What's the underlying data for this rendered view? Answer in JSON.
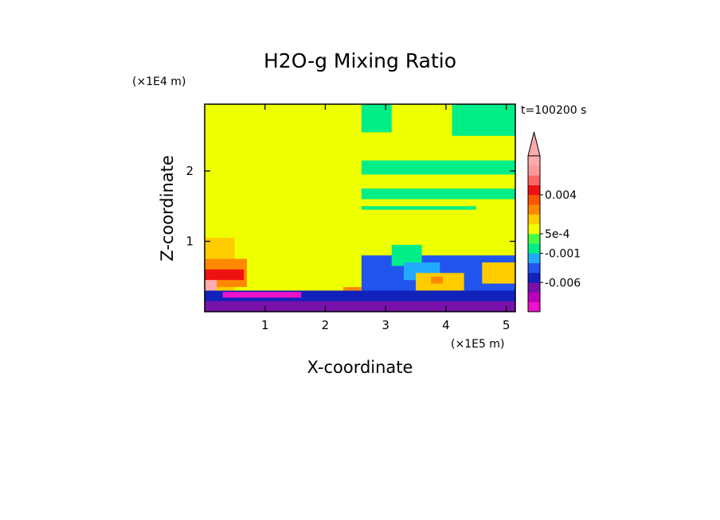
{
  "chart_data": {
    "type": "heatmap",
    "title": "H2O-g Mixing Ratio",
    "xlabel": "X-coordinate",
    "ylabel": "Z-coordinate",
    "x_unit": "(×1E5 m)",
    "y_unit": "(×1E4 m)",
    "time_label": "t=100200 s",
    "xlim": [
      0,
      5.15
    ],
    "ylim": [
      0,
      2.95
    ],
    "x_ticks": [
      1,
      2,
      3,
      4,
      5
    ],
    "y_ticks": [
      1,
      2
    ],
    "colorbar": {
      "colors": [
        "#ee11cc",
        "#bb00bb",
        "#7711aa",
        "#1122bb",
        "#2255ee",
        "#22aaff",
        "#00ee88",
        "#44ff44",
        "#eeff00",
        "#ffcc00",
        "#ff8800",
        "#ff5500",
        "#ee1111",
        "#ff6666",
        "#ff9999",
        "#ffaaaa"
      ],
      "tick_labels": [
        "0.004",
        "5e-4",
        "-0.001",
        "-0.006"
      ],
      "tick_values": [
        0.004,
        0.0005,
        -0.001,
        -0.006
      ],
      "extend": "max"
    },
    "regions": [
      {
        "fill": "#eeff00",
        "x": [
          0,
          5.15
        ],
        "y": [
          0,
          2.95
        ]
      },
      {
        "fill": "#00ee88",
        "x": [
          2.6,
          3.1
        ],
        "y": [
          2.55,
          2.95
        ]
      },
      {
        "fill": "#00ee88",
        "x": [
          4.1,
          5.15
        ],
        "y": [
          2.5,
          2.95
        ]
      },
      {
        "fill": "#00ee88",
        "x": [
          2.6,
          5.15
        ],
        "y": [
          1.95,
          2.15
        ]
      },
      {
        "fill": "#00ee88",
        "x": [
          2.6,
          5.15
        ],
        "y": [
          1.6,
          1.75
        ]
      },
      {
        "fill": "#00ee88",
        "x": [
          2.6,
          4.5
        ],
        "y": [
          1.45,
          1.5
        ]
      },
      {
        "fill": "#2255ee",
        "x": [
          2.6,
          5.15
        ],
        "y": [
          0.1,
          0.8
        ]
      },
      {
        "fill": "#00ee88",
        "x": [
          3.1,
          3.6
        ],
        "y": [
          0.65,
          0.95
        ]
      },
      {
        "fill": "#22aaff",
        "x": [
          3.3,
          3.9
        ],
        "y": [
          0.45,
          0.7
        ]
      },
      {
        "fill": "#ffcc00",
        "x": [
          3.5,
          4.3
        ],
        "y": [
          0.3,
          0.55
        ]
      },
      {
        "fill": "#ff8800",
        "x": [
          3.75,
          3.95
        ],
        "y": [
          0.4,
          0.5
        ]
      },
      {
        "fill": "#ffcc00",
        "x": [
          4.6,
          5.15
        ],
        "y": [
          0.4,
          0.7
        ]
      },
      {
        "fill": "#1122bb",
        "x": [
          0,
          5.15
        ],
        "y": [
          0,
          0.3
        ]
      },
      {
        "fill": "#7711aa",
        "x": [
          0,
          5.15
        ],
        "y": [
          0,
          0.15
        ]
      },
      {
        "fill": "#ee11cc",
        "x": [
          0.3,
          1.6
        ],
        "y": [
          0.2,
          0.28
        ]
      },
      {
        "fill": "#ffcc00",
        "x": [
          0,
          0.5
        ],
        "y": [
          0.3,
          1.05
        ]
      },
      {
        "fill": "#ff8800",
        "x": [
          0,
          0.7
        ],
        "y": [
          0.35,
          0.75
        ]
      },
      {
        "fill": "#ee1111",
        "x": [
          0,
          0.65
        ],
        "y": [
          0.45,
          0.6
        ]
      },
      {
        "fill": "#ffaaaa",
        "x": [
          0,
          0.2
        ],
        "y": [
          0.3,
          0.45
        ]
      },
      {
        "fill": "#ff8800",
        "x": [
          2.3,
          2.6
        ],
        "y": [
          0.3,
          0.35
        ]
      }
    ]
  }
}
